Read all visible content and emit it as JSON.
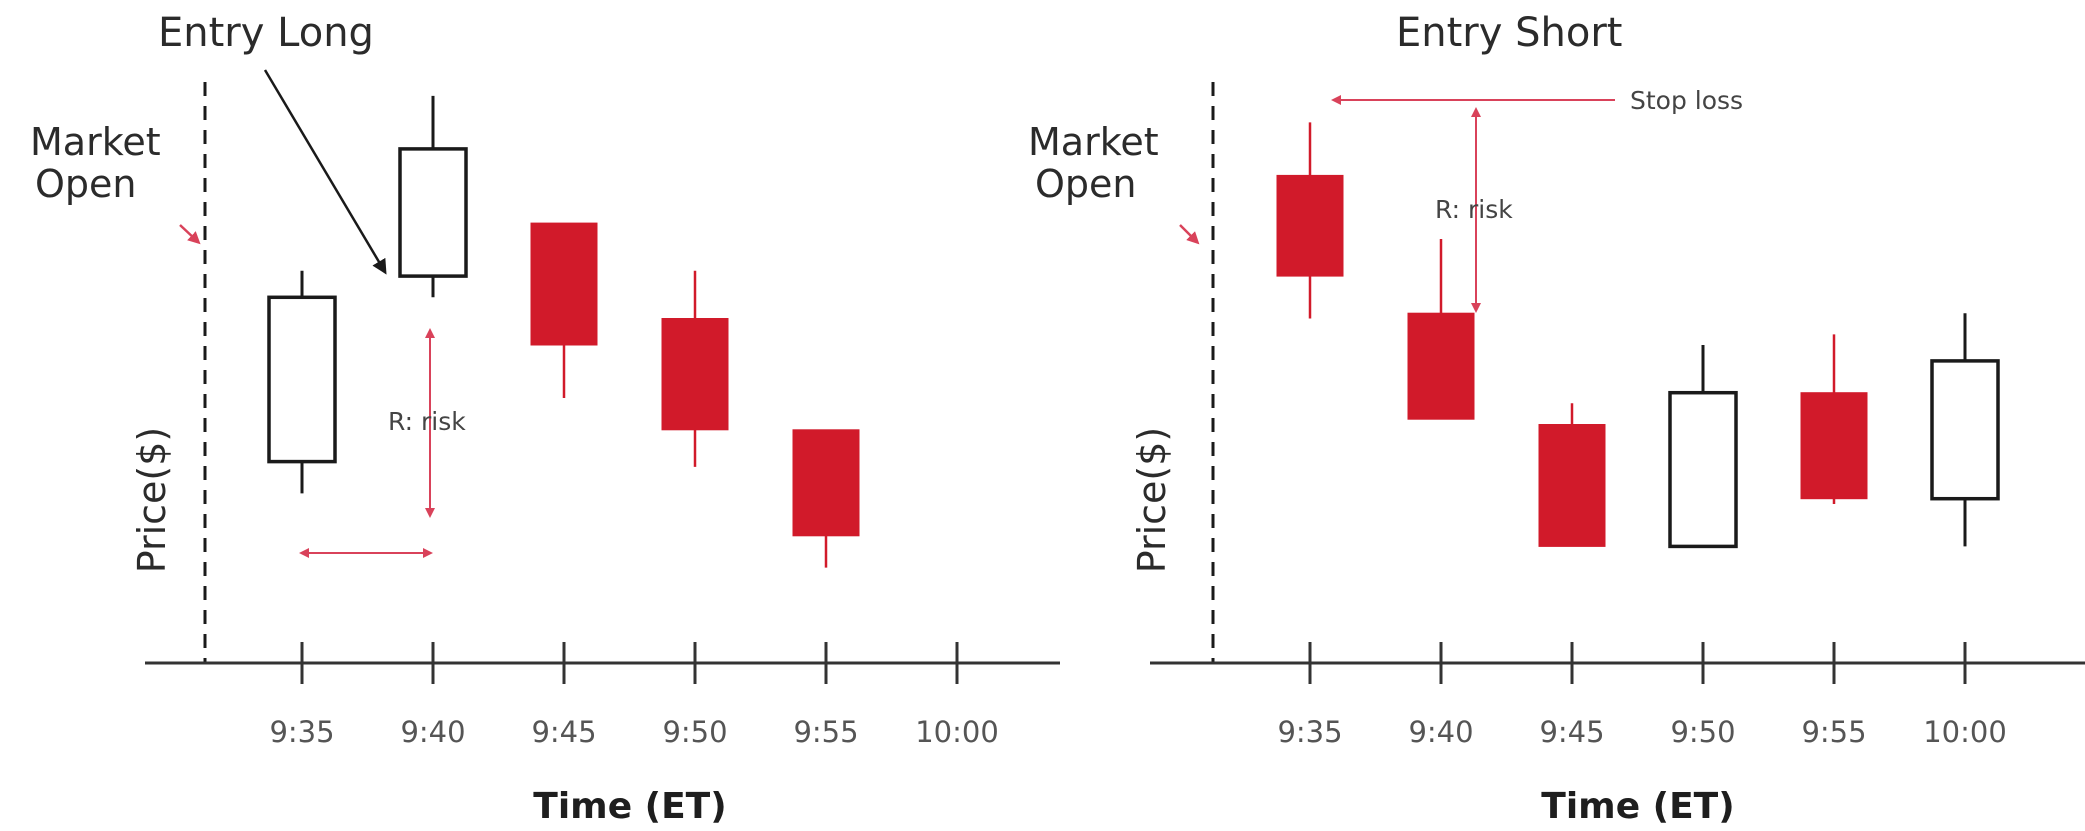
{
  "colors": {
    "bearish": "#d11a2a",
    "bullish": "#ffffff",
    "outline": "#1a1a1a",
    "annotation": "#d9425a",
    "axis": "#333333"
  },
  "chart_data": [
    {
      "type": "candlestick",
      "title": "Entry Long",
      "market_open_label": [
        "Market",
        "Open"
      ],
      "ylabel": "Price($)",
      "xlabel": "Time (ET)",
      "categories": [
        "9:35",
        "9:40",
        "9:45",
        "9:50",
        "9:55",
        "10:00"
      ],
      "ylim": [
        0,
        100
      ],
      "candles": [
        {
          "time": "9:35",
          "open": 28,
          "high": 64,
          "low": 22,
          "close": 59,
          "direction": "up"
        },
        {
          "time": "9:40",
          "open": 63,
          "high": 97,
          "low": 59,
          "close": 87,
          "direction": "up"
        },
        {
          "time": "9:45",
          "open": 73,
          "high": 73,
          "low": 40,
          "close": 50,
          "direction": "down"
        },
        {
          "time": "9:50",
          "open": 55,
          "high": 64,
          "low": 27,
          "close": 34,
          "direction": "down"
        },
        {
          "time": "9:55",
          "open": 34,
          "high": 34,
          "low": 8,
          "close": 14,
          "direction": "down"
        }
      ],
      "annotations": {
        "pointer_label": "Entry Long",
        "risk_label": "R: risk"
      }
    },
    {
      "type": "candlestick",
      "title": "Entry Short",
      "market_open_label": [
        "Market",
        "Open"
      ],
      "ylabel": "Price($)",
      "xlabel": "Time (ET)",
      "categories": [
        "9:35",
        "9:40",
        "9:45",
        "9:50",
        "9:55",
        "10:00"
      ],
      "ylim": [
        0,
        100
      ],
      "candles": [
        {
          "time": "9:35",
          "open": 82,
          "high": 92,
          "low": 55,
          "close": 63,
          "direction": "down"
        },
        {
          "time": "9:40",
          "open": 56,
          "high": 70,
          "low": 36,
          "close": 36,
          "direction": "down"
        },
        {
          "time": "9:45",
          "open": 35,
          "high": 39,
          "low": 12,
          "close": 12,
          "direction": "down"
        },
        {
          "time": "9:50",
          "open": 12,
          "high": 50,
          "low": 12,
          "close": 41,
          "direction": "up"
        },
        {
          "time": "9:55",
          "open": 41,
          "high": 52,
          "low": 20,
          "close": 21,
          "direction": "down"
        },
        {
          "time": "10:00",
          "open": 21,
          "high": 56,
          "low": 12,
          "close": 47,
          "direction": "up"
        }
      ],
      "annotations": {
        "stop_loss_label": "Stop loss",
        "risk_label": "R: risk"
      }
    }
  ]
}
